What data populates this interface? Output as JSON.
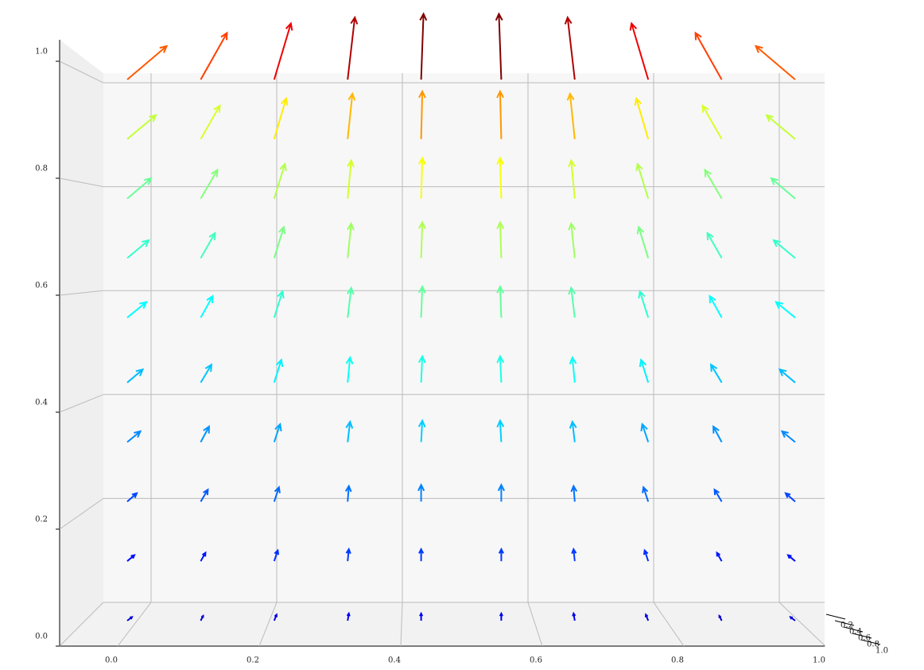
{
  "chart_data": {
    "type": "quiver",
    "colormap": "jet",
    "x": [
      0,
      0.11,
      0.22,
      0.33,
      0.44,
      0.56,
      0.67,
      0.78,
      0.89,
      1
    ],
    "z": [
      0,
      0.11,
      0.22,
      0.33,
      0.44,
      0.56,
      0.67,
      0.78,
      0.89,
      1
    ],
    "u": [
      [
        0.04,
        0.02,
        0.02,
        0.01,
        0,
        0,
        -0.01,
        -0.02,
        -0.02,
        -0.04
      ],
      [
        0.06,
        0.04,
        0.03,
        0.01,
        0,
        0,
        -0.01,
        -0.03,
        -0.04,
        -0.06
      ],
      [
        0.08,
        0.06,
        0.04,
        0.01,
        0,
        0,
        -0.01,
        -0.04,
        -0.06,
        -0.08
      ],
      [
        0.11,
        0.07,
        0.05,
        0.02,
        0.01,
        -0.01,
        -0.02,
        -0.05,
        -0.07,
        -0.11
      ],
      [
        0.13,
        0.09,
        0.06,
        0.02,
        0.01,
        -0.01,
        -0.02,
        -0.06,
        -0.09,
        -0.13
      ],
      [
        0.16,
        0.1,
        0.07,
        0.03,
        0.01,
        -0.01,
        -0.03,
        -0.07,
        -0.1,
        -0.16
      ],
      [
        0.18,
        0.12,
        0.08,
        0.03,
        0.01,
        -0.01,
        -0.03,
        -0.08,
        -0.12,
        -0.18
      ],
      [
        0.2,
        0.14,
        0.09,
        0.03,
        0.01,
        -0.01,
        -0.03,
        -0.09,
        -0.14,
        -0.2
      ],
      [
        0.24,
        0.16,
        0.1,
        0.04,
        0.01,
        -0.01,
        -0.04,
        -0.1,
        -0.16,
        -0.24
      ],
      [
        0.33,
        0.22,
        0.14,
        0.06,
        0.02,
        -0.02,
        -0.06,
        -0.14,
        -0.22,
        -0.33
      ]
    ],
    "w": [
      [
        0.03,
        0.04,
        0.05,
        0.06,
        0.06,
        0.06,
        0.06,
        0.05,
        0.04,
        0.03
      ],
      [
        0.05,
        0.07,
        0.09,
        0.1,
        0.1,
        0.1,
        0.1,
        0.09,
        0.07,
        0.05
      ],
      [
        0.07,
        0.1,
        0.12,
        0.13,
        0.14,
        0.14,
        0.13,
        0.12,
        0.1,
        0.07
      ],
      [
        0.09,
        0.13,
        0.15,
        0.17,
        0.18,
        0.18,
        0.17,
        0.15,
        0.13,
        0.09
      ],
      [
        0.11,
        0.15,
        0.19,
        0.21,
        0.22,
        0.22,
        0.21,
        0.19,
        0.15,
        0.11
      ],
      [
        0.13,
        0.18,
        0.22,
        0.25,
        0.26,
        0.26,
        0.25,
        0.22,
        0.18,
        0.13
      ],
      [
        0.15,
        0.21,
        0.26,
        0.29,
        0.3,
        0.3,
        0.29,
        0.26,
        0.21,
        0.15
      ],
      [
        0.17,
        0.24,
        0.29,
        0.32,
        0.34,
        0.34,
        0.32,
        0.29,
        0.24,
        0.17
      ],
      [
        0.2,
        0.28,
        0.34,
        0.38,
        0.4,
        0.4,
        0.38,
        0.34,
        0.28,
        0.2
      ],
      [
        0.28,
        0.39,
        0.47,
        0.52,
        0.55,
        0.55,
        0.52,
        0.47,
        0.39,
        0.28
      ]
    ],
    "xlim": [
      0,
      1
    ],
    "zlim": [
      0,
      1
    ],
    "xticks": [
      {
        "value": 0,
        "label": "0.0"
      },
      {
        "value": 0.2,
        "label": "0.2"
      },
      {
        "value": 0.4,
        "label": "0.4"
      },
      {
        "value": 0.6,
        "label": "0.6"
      },
      {
        "value": 0.8,
        "label": "0.8"
      },
      {
        "value": 1,
        "label": "1.0"
      }
    ],
    "zticks": [
      {
        "value": 0,
        "label": "0.0"
      },
      {
        "value": 0.2,
        "label": "0.2"
      },
      {
        "value": 0.4,
        "label": "0.4"
      },
      {
        "value": 0.6,
        "label": "0.6"
      },
      {
        "value": 0.8,
        "label": "0.8"
      },
      {
        "value": 1,
        "label": "1.0"
      }
    ],
    "yticks": [
      {
        "value": 0.2,
        "label": "0.2"
      },
      {
        "value": 0.4,
        "label": "0.4"
      },
      {
        "value": 0.6,
        "label": "0.6"
      },
      {
        "value": 0.8,
        "label": "0.8"
      },
      {
        "value": 1,
        "label": "1.0"
      }
    ],
    "grid": true
  }
}
